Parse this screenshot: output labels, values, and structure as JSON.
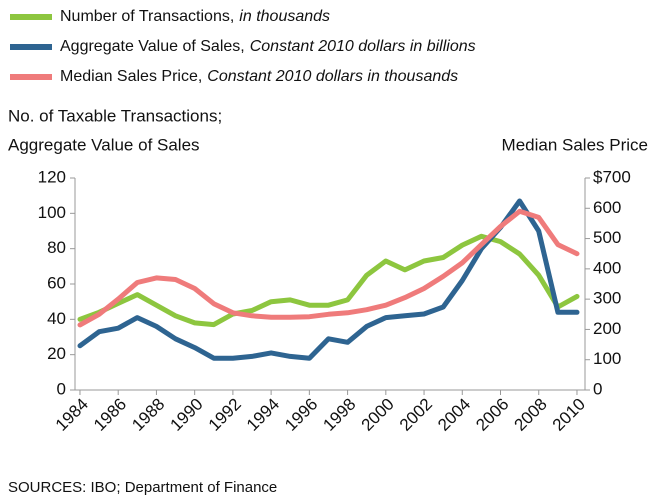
{
  "chart_data": {
    "type": "line",
    "axis_label_left": [
      "No. of Taxable Transactions;",
      "Aggregate Value of Sales"
    ],
    "axis_label_right": "Median Sales Price",
    "source": "SOURCES: IBO; Department of Finance",
    "x": [
      1984,
      1985,
      1986,
      1987,
      1988,
      1989,
      1990,
      1991,
      1992,
      1993,
      1994,
      1995,
      1996,
      1997,
      1998,
      1999,
      2000,
      2001,
      2002,
      2003,
      2004,
      2005,
      2006,
      2007,
      2008,
      2009,
      2010
    ],
    "xlim": [
      1983.74,
      2010.42
    ],
    "xticks": [
      1984,
      1986,
      1988,
      1990,
      1992,
      1994,
      1996,
      1998,
      2000,
      2002,
      2004,
      2006,
      2008,
      2010
    ],
    "ylim": [
      0,
      120
    ],
    "yticks": [
      0,
      20,
      40,
      60,
      80,
      100,
      120
    ],
    "y2lim": [
      0,
      700
    ],
    "y2ticks": [
      0,
      100,
      200,
      300,
      400,
      500,
      600,
      {
        "value": 700,
        "label": "$700"
      }
    ],
    "series": [
      {
        "name": "Number of Transactions,",
        "unit": "in thousands",
        "color": "#8dc63f",
        "values": [
          40,
          44,
          49,
          54,
          48,
          42,
          38,
          37,
          43,
          45,
          50,
          51,
          48,
          48,
          51,
          65,
          73,
          68,
          73,
          75,
          82,
          87,
          84,
          77,
          65,
          47,
          53
        ]
      },
      {
        "name": "Aggregate Value of Sales,",
        "unit": "Constant 2010 dollars in billions",
        "color": "#2e6491",
        "values": [
          25,
          33,
          35,
          41,
          36,
          29,
          24,
          18,
          18,
          19,
          21,
          19,
          18,
          29,
          27,
          36,
          41,
          42,
          43,
          47,
          62,
          80,
          92,
          107,
          90,
          44,
          44
        ]
      },
      {
        "name": "Median Sales Price,",
        "unit": "Constant 2010 dollars in thousands",
        "color": "#ef7b7b",
        "axis": "y2",
        "values": [
          215,
          250,
          300,
          355,
          370,
          365,
          335,
          285,
          255,
          245,
          240,
          240,
          242,
          250,
          255,
          265,
          280,
          305,
          335,
          375,
          420,
          480,
          540,
          590,
          570,
          480,
          450
        ]
      }
    ]
  }
}
